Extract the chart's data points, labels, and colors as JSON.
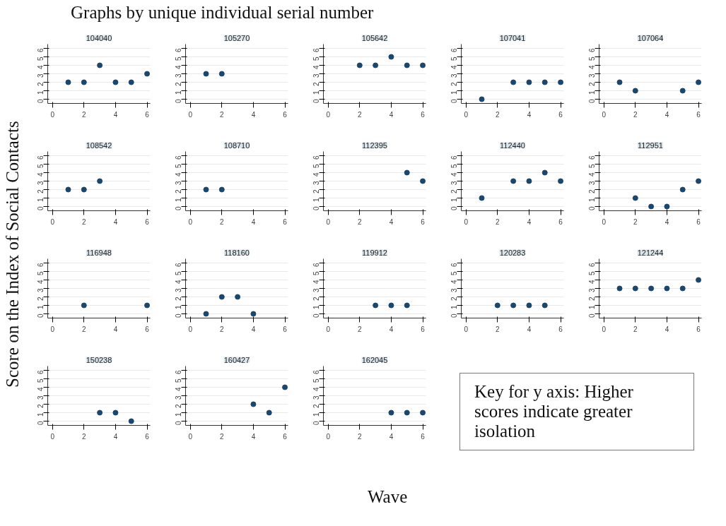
{
  "chart_data": [
    {
      "type": "scatter",
      "title": "104040",
      "x": [
        1,
        2,
        3,
        4,
        5,
        6
      ],
      "values": [
        2,
        2,
        4,
        2,
        2,
        3
      ],
      "color": "#1a476f",
      "marker": "circle",
      "xlim": [
        -0.3,
        6.2
      ],
      "xticks": [
        0,
        2,
        4,
        6
      ],
      "ylim": [
        -0.5,
        6.5
      ],
      "yticks": [
        0,
        1,
        2,
        3,
        4,
        5,
        6
      ],
      "grid": "y"
    },
    {
      "type": "scatter",
      "title": "105270",
      "x": [
        1,
        2
      ],
      "values": [
        3,
        3
      ],
      "color": "#1a476f",
      "marker": "circle",
      "xlim": [
        -0.3,
        6.2
      ],
      "xticks": [
        0,
        2,
        4,
        6
      ],
      "ylim": [
        -0.5,
        6.5
      ],
      "yticks": [
        0,
        1,
        2,
        3,
        4,
        5,
        6
      ],
      "grid": "y"
    },
    {
      "type": "scatter",
      "title": "105642",
      "x": [
        2,
        3,
        4,
        5,
        6
      ],
      "values": [
        4,
        4,
        5,
        4,
        4
      ],
      "color": "#1a476f",
      "marker": "circle",
      "xlim": [
        -0.3,
        6.2
      ],
      "xticks": [
        0,
        2,
        4,
        6
      ],
      "ylim": [
        -0.5,
        6.5
      ],
      "yticks": [
        0,
        1,
        2,
        3,
        4,
        5,
        6
      ],
      "grid": "y"
    },
    {
      "type": "scatter",
      "title": "107041",
      "x": [
        1,
        3,
        4,
        5,
        6
      ],
      "values": [
        0,
        2,
        2,
        2,
        2
      ],
      "color": "#1a476f",
      "marker": "circle",
      "xlim": [
        -0.3,
        6.2
      ],
      "xticks": [
        0,
        2,
        4,
        6
      ],
      "ylim": [
        -0.5,
        6.5
      ],
      "yticks": [
        0,
        1,
        2,
        3,
        4,
        5,
        6
      ],
      "grid": "y"
    },
    {
      "type": "scatter",
      "title": "107064",
      "x": [
        1,
        2,
        5,
        6
      ],
      "values": [
        2,
        1,
        1,
        2
      ],
      "color": "#1a476f",
      "marker": "circle",
      "xlim": [
        -0.3,
        6.2
      ],
      "xticks": [
        0,
        2,
        4,
        6
      ],
      "ylim": [
        -0.5,
        6.5
      ],
      "yticks": [
        0,
        1,
        2,
        3,
        4,
        5,
        6
      ],
      "grid": "y"
    },
    {
      "type": "scatter",
      "title": "108542",
      "x": [
        1,
        2,
        3
      ],
      "values": [
        2,
        2,
        3
      ],
      "color": "#1a476f",
      "marker": "circle",
      "xlim": [
        -0.3,
        6.2
      ],
      "xticks": [
        0,
        2,
        4,
        6
      ],
      "ylim": [
        -0.5,
        6.5
      ],
      "yticks": [
        0,
        1,
        2,
        3,
        4,
        5,
        6
      ],
      "grid": "y"
    },
    {
      "type": "scatter",
      "title": "108710",
      "x": [
        1,
        2
      ],
      "values": [
        2,
        2
      ],
      "color": "#1a476f",
      "marker": "circle",
      "xlim": [
        -0.3,
        6.2
      ],
      "xticks": [
        0,
        2,
        4,
        6
      ],
      "ylim": [
        -0.5,
        6.5
      ],
      "yticks": [
        0,
        1,
        2,
        3,
        4,
        5,
        6
      ],
      "grid": "y"
    },
    {
      "type": "scatter",
      "title": "112395",
      "x": [
        5,
        6
      ],
      "values": [
        4,
        3
      ],
      "color": "#1a476f",
      "marker": "circle",
      "xlim": [
        -0.3,
        6.2
      ],
      "xticks": [
        0,
        2,
        4,
        6
      ],
      "ylim": [
        -0.5,
        6.5
      ],
      "yticks": [
        0,
        1,
        2,
        3,
        4,
        5,
        6
      ],
      "grid": "y"
    },
    {
      "type": "scatter",
      "title": "112440",
      "x": [
        1,
        3,
        4,
        5,
        6
      ],
      "values": [
        1,
        3,
        3,
        4,
        3
      ],
      "color": "#1a476f",
      "marker": "circle",
      "xlim": [
        -0.3,
        6.2
      ],
      "xticks": [
        0,
        2,
        4,
        6
      ],
      "ylim": [
        -0.5,
        6.5
      ],
      "yticks": [
        0,
        1,
        2,
        3,
        4,
        5,
        6
      ],
      "grid": "y"
    },
    {
      "type": "scatter",
      "title": "112951",
      "x": [
        2,
        3,
        4,
        5,
        6
      ],
      "values": [
        1,
        0,
        0,
        2,
        3
      ],
      "color": "#1a476f",
      "marker": "circle",
      "xlim": [
        -0.3,
        6.2
      ],
      "xticks": [
        0,
        2,
        4,
        6
      ],
      "ylim": [
        -0.5,
        6.5
      ],
      "yticks": [
        0,
        1,
        2,
        3,
        4,
        5,
        6
      ],
      "grid": "y"
    },
    {
      "type": "scatter",
      "title": "116948",
      "x": [
        2,
        6
      ],
      "values": [
        1,
        1
      ],
      "color": "#1a476f",
      "marker": "circle",
      "xlim": [
        -0.3,
        6.2
      ],
      "xticks": [
        0,
        2,
        4,
        6
      ],
      "ylim": [
        -0.5,
        6.5
      ],
      "yticks": [
        0,
        1,
        2,
        3,
        4,
        5,
        6
      ],
      "grid": "y"
    },
    {
      "type": "scatter",
      "title": "118160",
      "x": [
        1,
        2,
        3,
        4
      ],
      "values": [
        0,
        2,
        2,
        0
      ],
      "color": "#1a476f",
      "marker": "circle",
      "xlim": [
        -0.3,
        6.2
      ],
      "xticks": [
        0,
        2,
        4,
        6
      ],
      "ylim": [
        -0.5,
        6.5
      ],
      "yticks": [
        0,
        1,
        2,
        3,
        4,
        5,
        6
      ],
      "grid": "y"
    },
    {
      "type": "scatter",
      "title": "119912",
      "x": [
        3,
        4,
        5
      ],
      "values": [
        1,
        1,
        1
      ],
      "color": "#1a476f",
      "marker": "circle",
      "xlim": [
        -0.3,
        6.2
      ],
      "xticks": [
        0,
        2,
        4,
        6
      ],
      "ylim": [
        -0.5,
        6.5
      ],
      "yticks": [
        0,
        1,
        2,
        3,
        4,
        5,
        6
      ],
      "grid": "y"
    },
    {
      "type": "scatter",
      "title": "120283",
      "x": [
        2,
        3,
        4,
        5
      ],
      "values": [
        1,
        1,
        1,
        1
      ],
      "color": "#1a476f",
      "marker": "circle",
      "xlim": [
        -0.3,
        6.2
      ],
      "xticks": [
        0,
        2,
        4,
        6
      ],
      "ylim": [
        -0.5,
        6.5
      ],
      "yticks": [
        0,
        1,
        2,
        3,
        4,
        5,
        6
      ],
      "grid": "y"
    },
    {
      "type": "scatter",
      "title": "121244",
      "x": [
        1,
        2,
        3,
        4,
        5,
        6
      ],
      "values": [
        3,
        3,
        3,
        3,
        3,
        4
      ],
      "color": "#1a476f",
      "marker": "circle",
      "xlim": [
        -0.3,
        6.2
      ],
      "xticks": [
        0,
        2,
        4,
        6
      ],
      "ylim": [
        -0.5,
        6.5
      ],
      "yticks": [
        0,
        1,
        2,
        3,
        4,
        5,
        6
      ],
      "grid": "y"
    },
    {
      "type": "scatter",
      "title": "150238",
      "x": [
        3,
        4,
        5
      ],
      "values": [
        1,
        1,
        0
      ],
      "color": "#1a476f",
      "marker": "circle",
      "xlim": [
        -0.3,
        6.2
      ],
      "xticks": [
        0,
        2,
        4,
        6
      ],
      "ylim": [
        -0.5,
        6.5
      ],
      "yticks": [
        0,
        1,
        2,
        3,
        4,
        5,
        6
      ],
      "grid": "y"
    },
    {
      "type": "scatter",
      "title": "160427",
      "x": [
        4,
        5,
        6
      ],
      "values": [
        2,
        1,
        4
      ],
      "color": "#1a476f",
      "marker": "circle",
      "xlim": [
        -0.3,
        6.2
      ],
      "xticks": [
        0,
        2,
        4,
        6
      ],
      "ylim": [
        -0.5,
        6.5
      ],
      "yticks": [
        0,
        1,
        2,
        3,
        4,
        5,
        6
      ],
      "grid": "y"
    },
    {
      "type": "scatter",
      "title": "162045",
      "x": [
        4,
        5,
        6
      ],
      "values": [
        1,
        1,
        1
      ],
      "color": "#1a476f",
      "marker": "circle",
      "xlim": [
        -0.3,
        6.2
      ],
      "xticks": [
        0,
        2,
        4,
        6
      ],
      "ylim": [
        -0.5,
        6.5
      ],
      "yticks": [
        0,
        1,
        2,
        3,
        4,
        5,
        6
      ],
      "grid": "y"
    },
    {
      "type": "other",
      "title": "Graphs by unique individual serial number",
      "xlabel": "Wave",
      "ylabel": "Score on the Index of Social Contacts",
      "annotations": [
        "Key for y axis: Higher scores indicate greater isolation"
      ]
    }
  ]
}
